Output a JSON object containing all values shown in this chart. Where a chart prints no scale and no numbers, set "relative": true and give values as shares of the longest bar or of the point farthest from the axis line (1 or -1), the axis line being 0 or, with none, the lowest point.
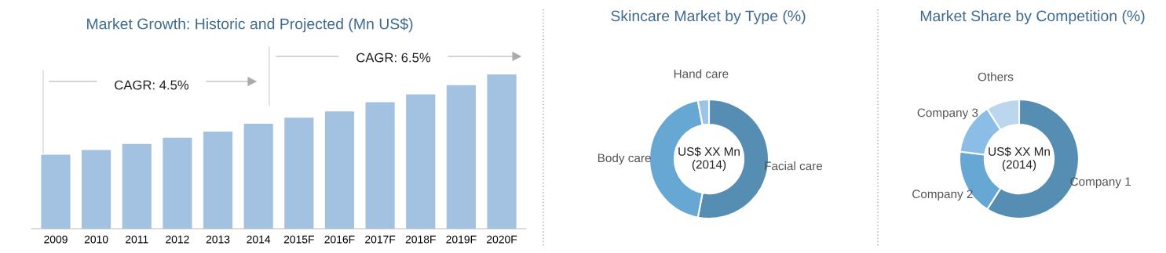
{
  "chart_data": [
    {
      "type": "bar",
      "title": "Market Growth: Historic and Projected (Mn US$)",
      "relative": true,
      "color": "#a3c1e0",
      "categories": [
        "2009",
        "2010",
        "2011",
        "2012",
        "2013",
        "2014",
        "2015F",
        "2016F",
        "2017F",
        "2018F",
        "2019F",
        "2020F"
      ],
      "values": [
        0.48,
        0.51,
        0.55,
        0.59,
        0.63,
        0.68,
        0.72,
        0.76,
        0.82,
        0.87,
        0.93,
        1.0
      ],
      "annotations": [
        "CAGR: 4.5%",
        "CAGR: 6.5%"
      ]
    },
    {
      "type": "donut",
      "title": "Skincare Market by Type (%)",
      "categories": [
        "Facial care",
        "Body care",
        "Hand care"
      ],
      "values": [
        53,
        44,
        3
      ],
      "colors": [
        "#568db3",
        "#67a7d4",
        "#9cc4e6"
      ],
      "annotations": [
        "US$ XX Mn\n(2014)"
      ]
    },
    {
      "type": "donut",
      "title": "Market Share by Competition (%)",
      "categories": [
        "Company 1",
        "Company 2",
        "Company 3",
        "Others"
      ],
      "values": [
        59,
        18,
        14,
        9
      ],
      "colors": [
        "#568db3",
        "#67a7d4",
        "#8bbde6",
        "#bcd6ee"
      ],
      "annotations": [
        "US$ XX Mn\n(2014)"
      ]
    }
  ]
}
